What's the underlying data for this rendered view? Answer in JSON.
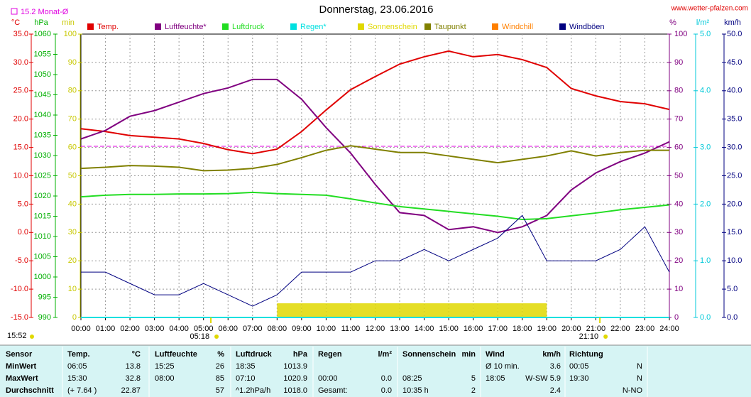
{
  "chart_data": {
    "type": "line",
    "title": "Donnerstag, 23.06.2016",
    "site": "www.wetter-pfalzen.com",
    "month_avg": {
      "label": "15.2 Monat-Ø",
      "value": 15.2,
      "color": "#e000e0"
    },
    "time_now": "15:52",
    "sunrise": "05:18",
    "sunset": "21:10",
    "categories": [
      "00:00",
      "01:00",
      "02:00",
      "03:00",
      "04:00",
      "05:00",
      "06:00",
      "07:00",
      "08:00",
      "09:00",
      "10:00",
      "11:00",
      "12:00",
      "13:00",
      "14:00",
      "15:00",
      "16:00",
      "17:00",
      "18:00",
      "19:00",
      "20:00",
      "21:00",
      "22:00",
      "23:00",
      "24:00"
    ],
    "axes": {
      "temp": {
        "label": "°C",
        "color": "#e00000",
        "lim": [
          -15,
          35
        ],
        "ticks": [
          {
            "value": -15,
            "label": "-15.0"
          },
          {
            "value": -10,
            "label": "-10.0"
          },
          {
            "value": -5,
            "label": "-5.0"
          },
          {
            "value": 0,
            "label": "0.0"
          },
          {
            "value": 5,
            "label": "5.0"
          },
          {
            "value": 10,
            "label": "10.0"
          },
          {
            "value": 15,
            "label": "15.0"
          },
          {
            "value": 20,
            "label": "20.0"
          },
          {
            "value": 25,
            "label": "25.0"
          },
          {
            "value": 30,
            "label": "30.0"
          },
          {
            "value": 35,
            "label": "35.0"
          }
        ]
      },
      "press": {
        "label": "hPa",
        "color": "#00b000",
        "lim": [
          990,
          1060
        ],
        "ticks": [
          990,
          995,
          1000,
          1005,
          1010,
          1015,
          1020,
          1025,
          1030,
          1035,
          1040,
          1045,
          1050,
          1055,
          1060
        ]
      },
      "min": {
        "label": "min",
        "color": "#c8c800",
        "lim": [
          0,
          100
        ],
        "ticks": [
          0,
          10,
          20,
          30,
          40,
          50,
          60,
          70,
          80,
          90,
          100
        ]
      },
      "hum": {
        "label": "%",
        "color": "#800080",
        "lim": [
          0,
          100
        ],
        "ticks": [
          0,
          10,
          20,
          30,
          40,
          50,
          60,
          70,
          80,
          90,
          100
        ]
      },
      "rain": {
        "label": "l/m²",
        "color": "#00c8d8",
        "lim": [
          0,
          5
        ],
        "ticks": [
          {
            "value": 0,
            "label": "0.0"
          },
          {
            "value": 1,
            "label": "1.0"
          },
          {
            "value": 2,
            "label": "2.0"
          },
          {
            "value": 3,
            "label": "3.0"
          },
          {
            "value": 4,
            "label": "4.0"
          },
          {
            "value": 5,
            "label": "5.0"
          }
        ]
      },
      "wind": {
        "label": "km/h",
        "color": "#000080",
        "lim": [
          0,
          50
        ],
        "ticks": [
          {
            "value": 0,
            "label": "0.0"
          },
          {
            "value": 5,
            "label": "5.0"
          },
          {
            "value": 10,
            "label": "10.0"
          },
          {
            "value": 15,
            "label": "15.0"
          },
          {
            "value": 20,
            "label": "20.0"
          },
          {
            "value": 25,
            "label": "25.0"
          },
          {
            "value": 30,
            "label": "30.0"
          },
          {
            "value": 35,
            "label": "35.0"
          },
          {
            "value": 40,
            "label": "40.0"
          },
          {
            "value": 45,
            "label": "45.0"
          },
          {
            "value": 50,
            "label": "50.0"
          }
        ]
      }
    },
    "series": [
      {
        "name": "Temp.",
        "color": "#e00000",
        "axis": "temp",
        "kind": "line",
        "values": [
          18.3,
          17.8,
          17.1,
          16.8,
          16.5,
          15.7,
          14.6,
          13.9,
          14.7,
          17.8,
          21.6,
          25.2,
          27.5,
          29.7,
          31.0,
          32.0,
          31.0,
          31.4,
          30.5,
          29.1,
          25.4,
          24.1,
          23.1,
          22.7,
          21.7
        ]
      },
      {
        "name": "Luftfeuchte*",
        "color": "#800080",
        "axis": "hum",
        "kind": "line",
        "values": [
          63,
          66,
          71,
          73,
          76,
          79,
          81,
          84,
          84,
          77,
          67,
          58,
          47,
          37,
          36,
          31,
          32,
          30,
          32,
          36,
          45,
          51,
          55,
          58,
          62
        ]
      },
      {
        "name": "Luftdruck",
        "color": "#22dd22",
        "axis": "press",
        "kind": "line",
        "values": [
          1019.8,
          1020.2,
          1020.4,
          1020.4,
          1020.5,
          1020.5,
          1020.6,
          1020.9,
          1020.6,
          1020.4,
          1020.2,
          1019.3,
          1018.3,
          1017.4,
          1016.8,
          1016.2,
          1015.6,
          1015.0,
          1014.2,
          1014.4,
          1015.1,
          1015.8,
          1016.6,
          1017.2,
          1017.8
        ]
      },
      {
        "name": "Regen*",
        "color": "#00e0e0",
        "axis": "rain",
        "kind": "line",
        "values": [
          0,
          0,
          0,
          0,
          0,
          0,
          0,
          0,
          0,
          0,
          0,
          0,
          0,
          0,
          0,
          0,
          0,
          0,
          0,
          0,
          0,
          0,
          0,
          0,
          0
        ]
      },
      {
        "name": "Sonnenschein",
        "color": "#e0d800",
        "axis": "min",
        "kind": "bar",
        "values": [
          0,
          0,
          0,
          0,
          0,
          0,
          0,
          0,
          5,
          5,
          5,
          5,
          5,
          5,
          5,
          5,
          5,
          5,
          5,
          0,
          0,
          0,
          0,
          0,
          0
        ]
      },
      {
        "name": "Taupunkt",
        "color": "#808000",
        "axis": "temp",
        "kind": "line",
        "values": [
          11.3,
          11.5,
          11.8,
          11.7,
          11.5,
          10.9,
          11.0,
          11.3,
          12.0,
          13.2,
          14.5,
          15.3,
          14.7,
          14.1,
          14.1,
          13.5,
          12.9,
          12.3,
          12.9,
          13.5,
          14.4,
          13.5,
          14.1,
          14.5,
          14.5
        ]
      },
      {
        "name": "Windchill",
        "color": "#ff8000",
        "axis": "temp",
        "kind": "none"
      },
      {
        "name": "Windböen",
        "color": "#000080",
        "axis": "wind",
        "kind": "line",
        "values": [
          8,
          8,
          6,
          4,
          4,
          6,
          4,
          2,
          4,
          8,
          8,
          8,
          10,
          10,
          12,
          10,
          12,
          14,
          18,
          10,
          10,
          10,
          12,
          16,
          8
        ]
      }
    ]
  },
  "table": {
    "header": [
      "Sensor",
      "Temp.",
      "°C",
      "Luftfeuchte",
      "%",
      "Luftdruck",
      "hPa",
      "Regen",
      "l/m²",
      "Sonnenschein",
      "min",
      "Wind",
      "km/h",
      "Richtung"
    ],
    "rows": [
      [
        "MinWert",
        "06:05",
        "13.8",
        "15:25",
        "26",
        "18:35",
        "1013.9",
        null,
        null,
        null,
        null,
        "Ø 10 min.",
        "3.6",
        "00:05",
        "N"
      ],
      [
        "MaxWert",
        "15:30",
        "32.8",
        "08:00",
        "85",
        "07:10",
        "1020.9",
        "00:00",
        "0.0",
        "08:25",
        "5",
        "18:05",
        "W-SW 5.9",
        "19:30",
        "N"
      ],
      [
        "Durchschnitt",
        "(+ 7.64 )",
        "22.87",
        null,
        "57",
        "^1.2hPa/h",
        "1018.0",
        "Gesamt:",
        "0.0",
        "10:35 h",
        "2",
        null,
        "2.4",
        null,
        "N-NO"
      ]
    ]
  }
}
